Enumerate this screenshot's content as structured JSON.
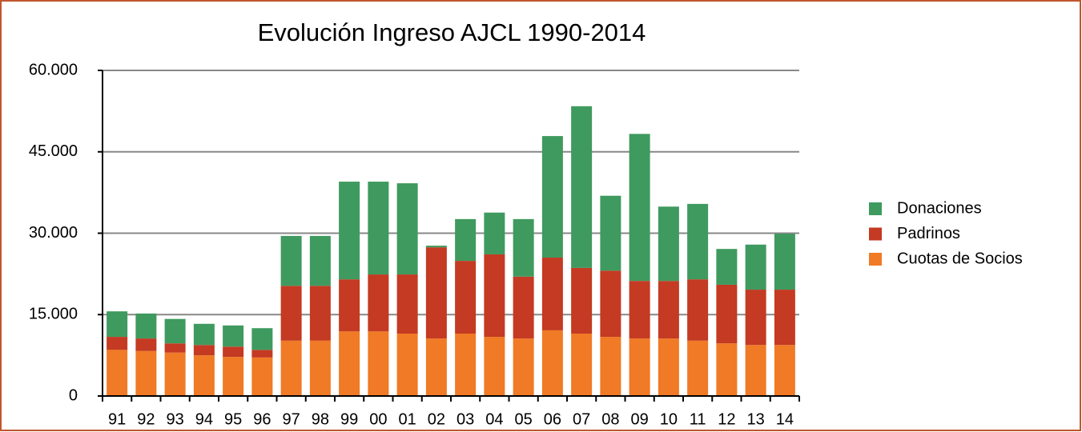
{
  "chart_data": {
    "type": "stacked_bar",
    "title": "Evolución Ingreso AJCL 1990-2014",
    "categories": [
      "91",
      "92",
      "93",
      "94",
      "95",
      "96",
      "97",
      "98",
      "99",
      "00",
      "01",
      "02",
      "03",
      "04",
      "05",
      "06",
      "07",
      "08",
      "09",
      "10",
      "11",
      "12",
      "13",
      "14"
    ],
    "series": [
      {
        "name": "Cuotas de Socios",
        "color": "#f07a25",
        "values": [
          8500,
          8300,
          8000,
          7500,
          7200,
          7100,
          10200,
          10200,
          11900,
          11900,
          11500,
          10600,
          11500,
          10900,
          10600,
          12100,
          11500,
          10900,
          10600,
          10600,
          10200,
          9700,
          9400,
          9400
        ]
      },
      {
        "name": "Padrinos",
        "color": "#c43a22",
        "values": [
          2400,
          2300,
          1700,
          1900,
          1900,
          1400,
          10100,
          10100,
          9600,
          10500,
          10900,
          16800,
          13400,
          15200,
          11400,
          13400,
          12100,
          12200,
          10600,
          10600,
          11300,
          10800,
          10200,
          10200
        ]
      },
      {
        "name": "Donaciones",
        "color": "#3f9a5f",
        "values": [
          4700,
          4600,
          4500,
          3900,
          3900,
          4000,
          9200,
          9200,
          18000,
          17100,
          16800,
          300,
          7700,
          7700,
          10600,
          22400,
          29800,
          13800,
          27100,
          13700,
          13900,
          6600,
          8300,
          10300
        ]
      }
    ],
    "ylim": [
      0,
      60000
    ],
    "yticks": [
      0,
      {
        "value": 15000,
        "label": "15.000"
      },
      {
        "value": 30000,
        "label": "30.000"
      },
      {
        "value": 45000,
        "label": "45.000"
      },
      {
        "value": 60000,
        "label": "60.000"
      }
    ],
    "grid": true,
    "legend": "right"
  }
}
